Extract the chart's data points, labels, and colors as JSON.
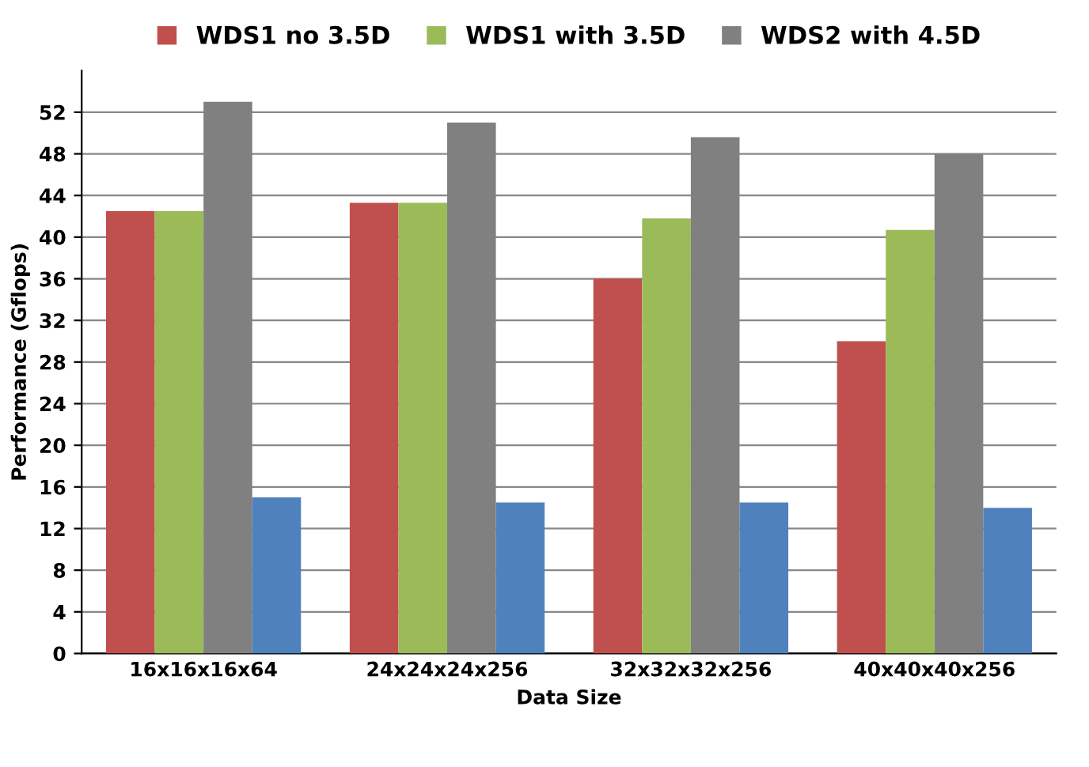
{
  "chart_data": {
    "type": "bar",
    "xlabel": "Data Size",
    "ylabel": "Performance (Gflops)",
    "categories": [
      "16x16x16x64",
      "24x24x24x256",
      "32x32x32x256",
      "40x40x40x256"
    ],
    "series": [
      {
        "name": "WDS1 no 3.5D",
        "color": "#c0504d",
        "values": [
          42.5,
          43.3,
          36,
          30
        ]
      },
      {
        "name": "WDS1 with 3.5D",
        "color": "#9bbb59",
        "values": [
          42.5,
          43.3,
          41.8,
          40.7
        ]
      },
      {
        "name": "WDS2 with 4.5D",
        "color": "#808080",
        "values": [
          53,
          51,
          49.6,
          48
        ]
      },
      {
        "color": "#4f81bd",
        "values": [
          15,
          14.5,
          14.5,
          14
        ]
      }
    ],
    "ylim": [
      0,
      56
    ],
    "yticks": [
      0,
      4,
      8,
      12,
      16,
      20,
      24,
      28,
      32,
      36,
      40,
      44,
      48,
      52
    ],
    "grid": "y",
    "legend": "top"
  }
}
